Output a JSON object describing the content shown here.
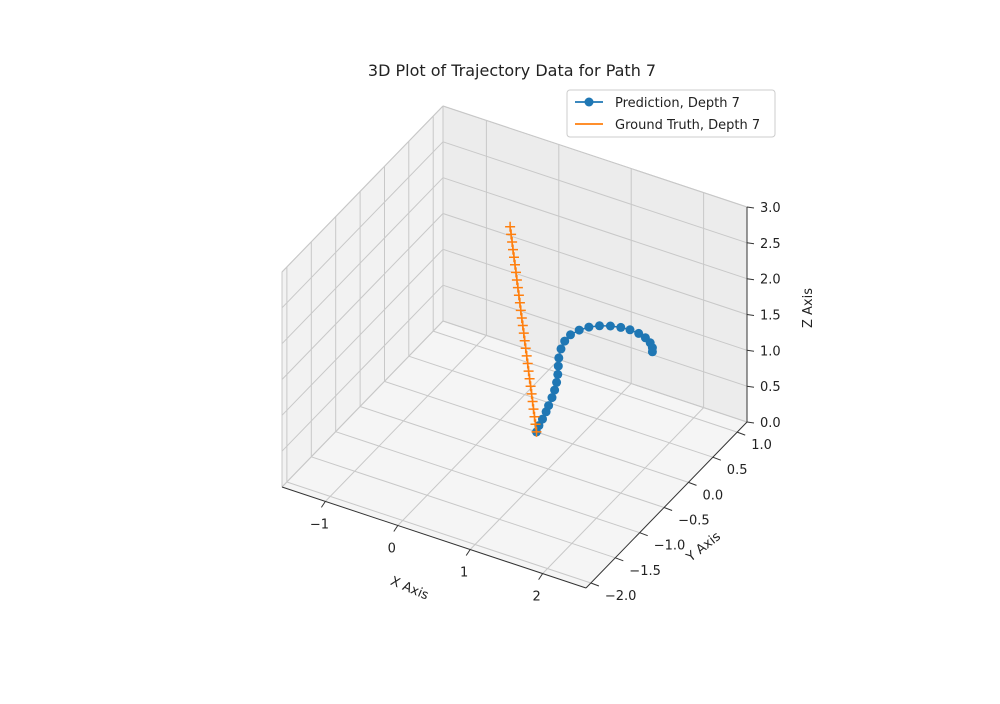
{
  "chart_data": {
    "type": "line",
    "projection": "3d",
    "title": "3D Plot of Trajectory Data for Path 7",
    "xlabel": "X Axis",
    "ylabel": "Y Axis",
    "zlabel": "Z Axis",
    "x_ticks": [
      "−1",
      "0",
      "1",
      "2"
    ],
    "y_ticks": [
      "−2.0",
      "−1.5",
      "−1.0",
      "−0.5",
      "0.0",
      "0.5",
      "1.0"
    ],
    "z_ticks": [
      "0.0",
      "0.5",
      "1.0",
      "1.5",
      "2.0",
      "2.5",
      "3.0"
    ],
    "xlim": [
      -1.6,
      2.6
    ],
    "ylim": [
      -2.1,
      1.2
    ],
    "zlim": [
      0.0,
      3.0
    ],
    "grid": true,
    "legend": "top-right",
    "series": [
      {
        "name": "Prediction, Depth 7",
        "color": "#1f77b4",
        "marker": "circle",
        "x": [
          0.5,
          0.52,
          0.55,
          0.58,
          0.6,
          0.62,
          0.63,
          0.63,
          0.62,
          0.6,
          0.58,
          0.57,
          0.58,
          0.62,
          0.7,
          0.8,
          0.92,
          1.05,
          1.18,
          1.3,
          1.42,
          1.52,
          1.6,
          1.65,
          1.67
        ],
        "y": [
          0.0,
          0.02,
          0.05,
          0.08,
          0.1,
          0.14,
          0.18,
          0.22,
          0.26,
          0.3,
          0.34,
          0.4,
          0.46,
          0.52,
          0.58,
          0.63,
          0.67,
          0.7,
          0.72,
          0.73,
          0.73,
          0.72,
          0.7,
          0.67,
          0.64
        ],
        "z": [
          0.0,
          0.08,
          0.16,
          0.25,
          0.33,
          0.42,
          0.5,
          0.58,
          0.66,
          0.74,
          0.82,
          0.9,
          0.97,
          1.03,
          1.08,
          1.12,
          1.15,
          1.17,
          1.18,
          1.18,
          1.17,
          1.15,
          1.12,
          1.09,
          1.06
        ]
      },
      {
        "name": "Ground Truth, Depth 7",
        "color": "#ff7f0e",
        "marker": "plus",
        "x": [
          0.5,
          0.5,
          0.5,
          0.5,
          0.5,
          0.5,
          0.5,
          0.5,
          0.5,
          0.5,
          0.5,
          0.5,
          0.5,
          0.5,
          0.5,
          0.5,
          0.5,
          0.5,
          0.5,
          0.5,
          0.5,
          0.5,
          0.5,
          0.5,
          0.5,
          0.5,
          0.5,
          0.5
        ],
        "y": [
          0.0,
          -0.02,
          -0.04,
          -0.06,
          -0.08,
          -0.1,
          -0.12,
          -0.14,
          -0.16,
          -0.18,
          -0.2,
          -0.22,
          -0.24,
          -0.26,
          -0.28,
          -0.3,
          -0.32,
          -0.34,
          -0.36,
          -0.38,
          -0.4,
          -0.42,
          -0.44,
          -0.46,
          -0.48,
          -0.5,
          -0.52,
          -0.54
        ],
        "z": [
          0.0,
          0.12,
          0.24,
          0.36,
          0.48,
          0.6,
          0.72,
          0.84,
          0.96,
          1.08,
          1.2,
          1.32,
          1.44,
          1.56,
          1.68,
          1.8,
          1.92,
          2.04,
          2.16,
          2.28,
          2.4,
          2.52,
          2.64,
          2.76,
          2.88,
          3.0,
          3.12,
          3.24
        ]
      }
    ]
  }
}
